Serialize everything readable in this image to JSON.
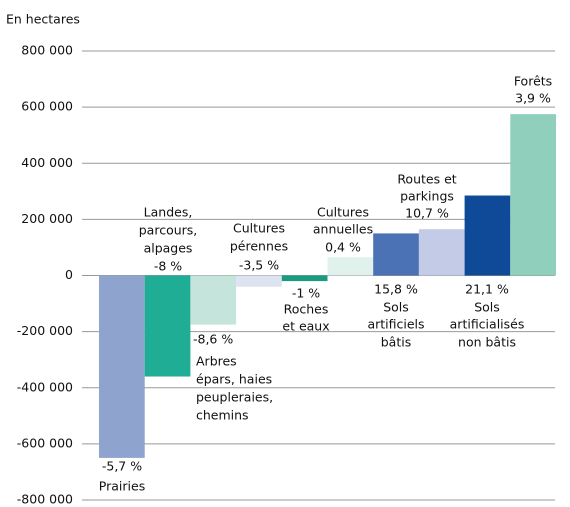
{
  "chart_data": {
    "type": "bar",
    "y_label": "En hectares",
    "categories": [
      [
        "Prairies"
      ],
      [
        "Landes,",
        "parcours,",
        "alpages"
      ],
      [
        "Arbres",
        "épars, haies",
        "peupleraies,",
        "chemins"
      ],
      [
        "Cultures",
        "pérennes"
      ],
      [
        "Roches",
        "et eaux"
      ],
      [
        "Cultures",
        "annuelles"
      ],
      [
        "Sols",
        "artificiels",
        "bâtis"
      ],
      [
        "Routes et",
        "parkings"
      ],
      [
        "Sols",
        "artificialisés",
        "non bâtis"
      ],
      [
        "Forêts"
      ]
    ],
    "changes": [
      "-5,7 %",
      "-8 %",
      "-8,6 %",
      "-3,5 %",
      "-1 %",
      "0,4 %",
      "15,8 %",
      "10,7 %",
      "21,1 %",
      "3,9 %"
    ],
    "values": [
      -650000,
      -360000,
      -175000,
      -40000,
      -20000,
      65000,
      150000,
      165000,
      285000,
      575000
    ],
    "colors": [
      "#8fa3cf",
      "#1fad95",
      "#c5e5dc",
      "#dde3f1",
      "#1a9a7f",
      "#e1f2ed",
      "#4a72b5",
      "#c4cbe6",
      "#0f4a98",
      "#8fcfbb"
    ],
    "ylim": [
      -800000,
      800000
    ],
    "yticks": [
      {
        "value": -800000,
        "label": "-800 000"
      },
      {
        "value": -600000,
        "label": "-600 000"
      },
      {
        "value": -400000,
        "label": "-400 000"
      },
      {
        "value": -200000,
        "label": "-200 000"
      },
      0,
      {
        "value": 200000,
        "label": "200 000"
      },
      {
        "value": 400000,
        "label": "400 000"
      },
      {
        "value": 600000,
        "label": "600 000"
      },
      {
        "value": 800000,
        "label": "800 000"
      }
    ],
    "grid": true
  }
}
